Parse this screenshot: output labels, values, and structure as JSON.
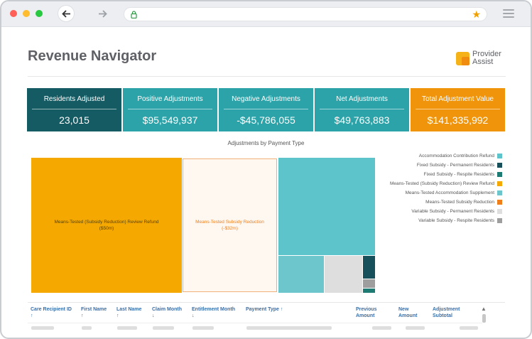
{
  "browser": {
    "traffic_lights": [
      "#ff5f57",
      "#febc2e",
      "#28c840"
    ],
    "back_icon": "arrow-left-icon",
    "forward_icon": "arrow-right-icon",
    "lock_icon": "lock-icon",
    "bookmark_icon": "star-icon",
    "menu_icon": "hamburger-icon"
  },
  "page": {
    "title": "Revenue Navigator",
    "logo_line1": "Provider",
    "logo_line2": "Assist"
  },
  "kpis": [
    {
      "label": "Residents Adjusted",
      "value": "23,015",
      "color": "#145b63"
    },
    {
      "label": "Positive Adjustments",
      "value": "$95,549,937",
      "color": "#2ba3a8"
    },
    {
      "label": "Negative Adjustments",
      "value": "-$45,786,055",
      "color": "#2ba3a8"
    },
    {
      "label": "Net Adjustments",
      "value": "$49,763,883",
      "color": "#2ba3a8"
    },
    {
      "label": "Total Adjustment Value",
      "value": "$141,335,992",
      "color": "#f0940c"
    }
  ],
  "chart_data": {
    "type": "treemap",
    "title": "Adjustments by Payment Type",
    "series": [
      {
        "name": "Accommodation Contribution Refund",
        "color": "#5ec4cc"
      },
      {
        "name": "Fixed Subsidy - Permanent Residents",
        "color": "#17505a"
      },
      {
        "name": "Fixed Subsidy - Respite Residents",
        "color": "#1e7b73"
      },
      {
        "name": "Means-Tested (Subsidy Reduction) Review Refund",
        "color": "#f5a800",
        "label": "Means-Tested (Subsidy Reduction) Review Refund",
        "value_label": "($50m)"
      },
      {
        "name": "Means-Tested Accommodation Supplement",
        "color": "#6cc6cc"
      },
      {
        "name": "Means-Tested Subsidy Reduction",
        "color": "#ef7f1a",
        "label": "Means-Tested Subsidy Reduction",
        "value_label": "(-$32m)"
      },
      {
        "name": "Variable Subsidy - Permanent Residents",
        "color": "#dedede"
      },
      {
        "name": "Variable Subsidy - Respite Residents",
        "color": "#9e9e9e"
      }
    ]
  },
  "table": {
    "columns": [
      {
        "label": "Care Recipient ID",
        "sort": "↑"
      },
      {
        "label": "First Name",
        "sort": "↑"
      },
      {
        "label": "Last Name",
        "sort": "↑"
      },
      {
        "label": "Claim Month",
        "sort": "↓"
      },
      {
        "label": "Entitlement Month",
        "sort": "↓"
      },
      {
        "label": "Payment Type ↑",
        "sort": ""
      },
      {
        "label": "Previous Amount",
        "sort": ""
      },
      {
        "label": "New Amount",
        "sort": ""
      },
      {
        "label": "Adjustment Subtotal",
        "sort": ""
      }
    ],
    "scroll_up_icon": "triangle-up-icon"
  }
}
